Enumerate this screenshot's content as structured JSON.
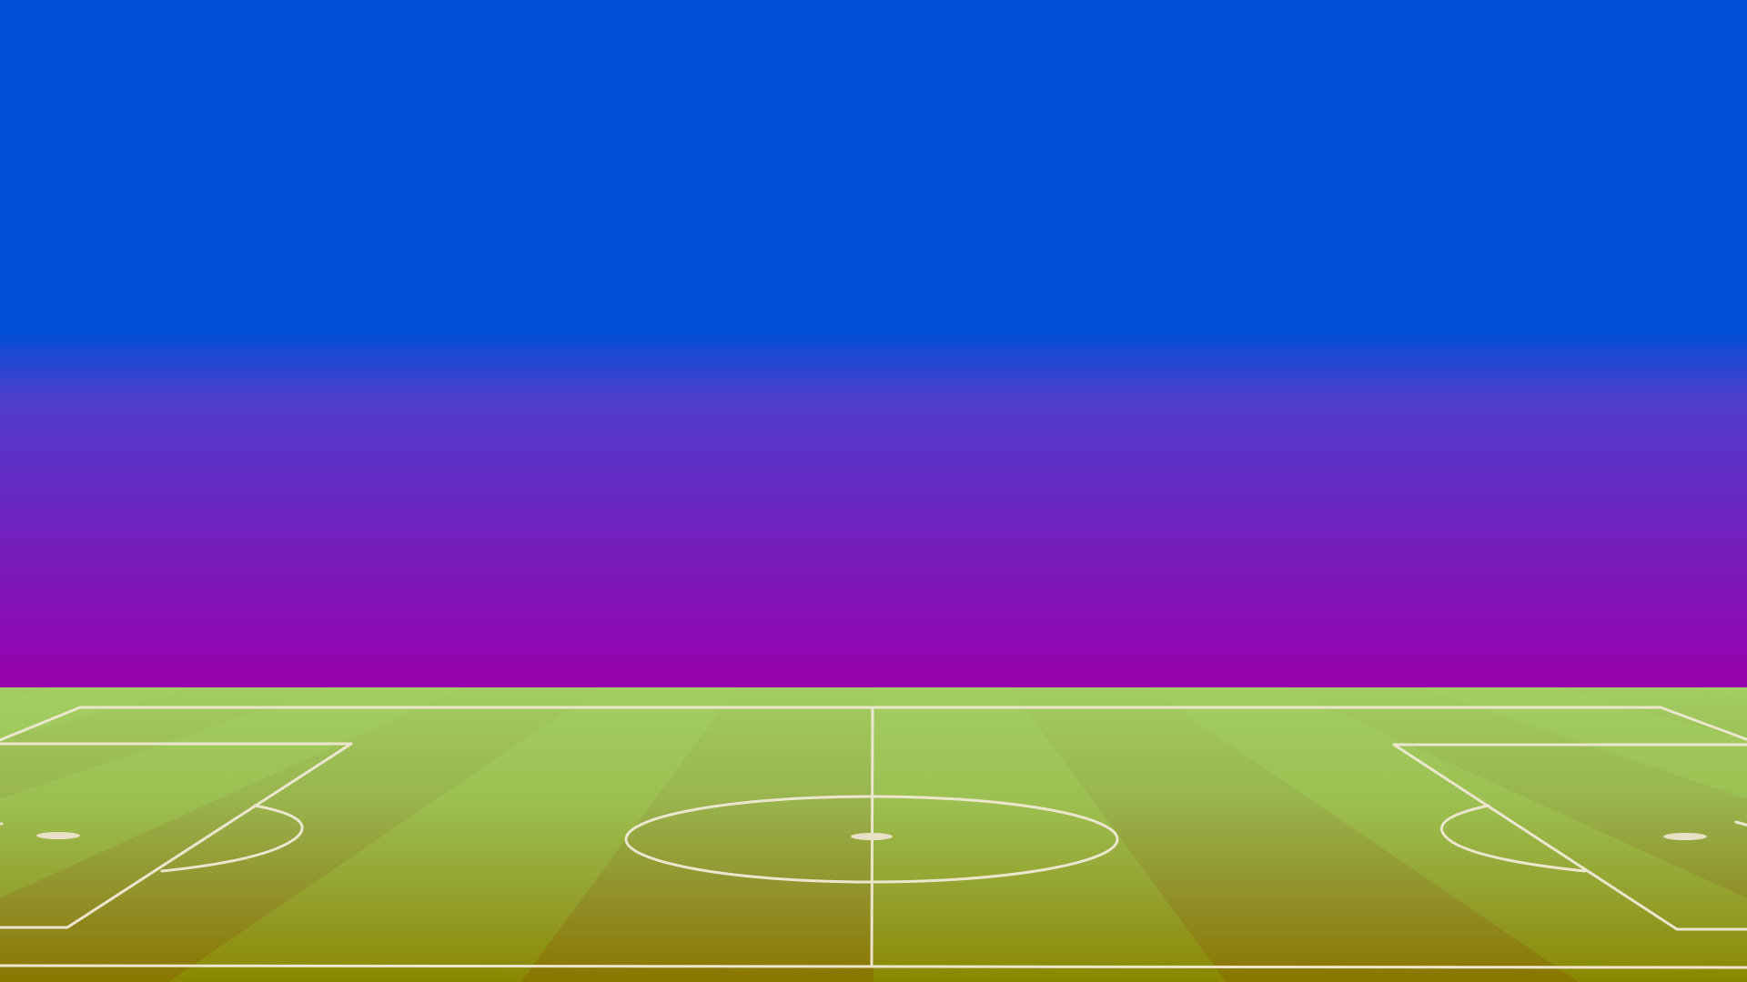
{
  "scene": {
    "type": "football-pitch-background",
    "colors": {
      "sky_top": "#004fd6",
      "sky_mid": "#4f3dcc",
      "sky_bottom": "#9a00ad",
      "grass_far": "#a3cf63",
      "grass_near": "#8a8800",
      "grass_near_dark": "#8b6300",
      "stripe_dark": "#6d6d2a",
      "line": "#ece6cf"
    },
    "stripe_count": 16
  }
}
